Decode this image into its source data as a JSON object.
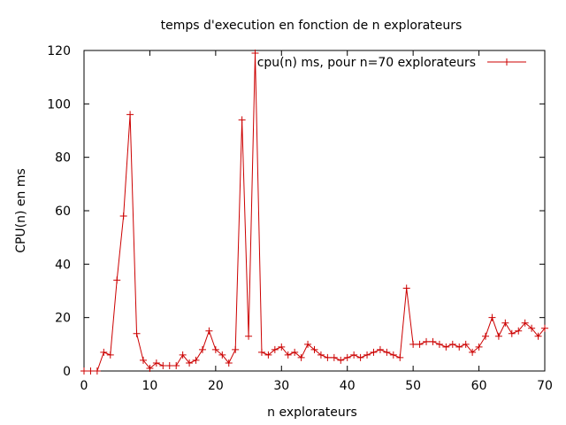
{
  "chart_data": {
    "type": "line",
    "title": "temps d'execution en fonction de n explorateurs",
    "xlabel": "n explorateurs",
    "ylabel": "CPU(n) en ms",
    "xlim": [
      0,
      70
    ],
    "ylim": [
      0,
      120
    ],
    "xticks": [
      0,
      10,
      20,
      30,
      40,
      50,
      60,
      70
    ],
    "yticks": [
      0,
      20,
      40,
      60,
      80,
      100,
      120
    ],
    "grid": false,
    "legend_position": "top-right",
    "series": [
      {
        "name": "cpu(n) ms, pour n=70 explorateurs",
        "color": "#cc0000",
        "marker": "plus",
        "x": [
          0,
          1,
          2,
          3,
          4,
          5,
          6,
          7,
          8,
          9,
          10,
          11,
          12,
          13,
          14,
          15,
          16,
          17,
          18,
          19,
          20,
          21,
          22,
          23,
          24,
          25,
          26,
          27,
          28,
          29,
          30,
          31,
          32,
          33,
          34,
          35,
          36,
          37,
          38,
          39,
          40,
          41,
          42,
          43,
          44,
          45,
          46,
          47,
          48,
          49,
          50,
          51,
          52,
          53,
          54,
          55,
          56,
          57,
          58,
          59,
          60,
          61,
          62,
          63,
          64,
          65,
          66,
          67,
          68,
          69,
          70
        ],
        "y": [
          0,
          0,
          0,
          7,
          6,
          34,
          58,
          96,
          14,
          4,
          1,
          3,
          2,
          2,
          2,
          6,
          3,
          4,
          8,
          15,
          8,
          6,
          3,
          8,
          94,
          13,
          119,
          7,
          6,
          8,
          9,
          6,
          7,
          5,
          10,
          8,
          6,
          5,
          5,
          4,
          5,
          6,
          5,
          6,
          7,
          8,
          7,
          6,
          5,
          31,
          10,
          10,
          11,
          11,
          10,
          9,
          10,
          9,
          10,
          7,
          9,
          13,
          20,
          13,
          18,
          14,
          15,
          18,
          16,
          13,
          16
        ]
      }
    ]
  }
}
